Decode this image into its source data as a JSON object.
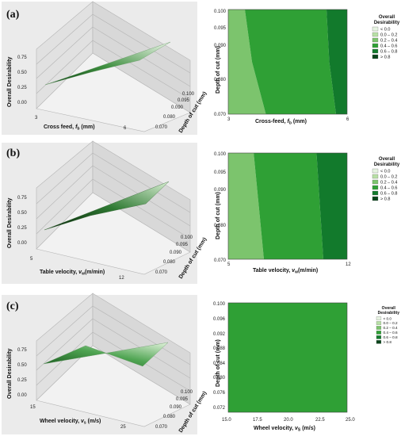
{
  "panels": [
    {
      "tag": "(a)",
      "surface": {
        "zlabel": "Overall Desirability",
        "xlabel_main": "Cross feed, ",
        "xlabel_sym": "f",
        "xlabel_sub": "b",
        "xlabel_unit": " (mm)",
        "ylabel": "Depth of cut (mm)",
        "zticks": [
          "0.00",
          "0.25",
          "0.50",
          "0.75"
        ],
        "xticks": [
          "3",
          "6"
        ],
        "yticks": [
          "0.070",
          "0.080",
          "0.090",
          "0.095",
          "0.100"
        ]
      },
      "contour": {
        "ylabel": "Depth of cut (mm)",
        "xlabel_main": "Cross-feed, ",
        "xlabel_sym": "f",
        "xlabel_sub": "b",
        "xlabel_unit": " (mm)",
        "xticks": [
          "3",
          "6"
        ],
        "yticks": [
          "0.100",
          "0.095",
          "0.090",
          "0.080",
          "0.070"
        ]
      }
    },
    {
      "tag": "(b)",
      "surface": {
        "zlabel": "Overall Desirability",
        "xlabel_main": "Table velocity, ",
        "xlabel_sym": "v",
        "xlabel_sub": "w",
        "xlabel_unit": "(m/min)",
        "ylabel": "Depth of cut (mm)",
        "zticks": [
          "0.00",
          "0.25",
          "0.50",
          "0.75"
        ],
        "xticks": [
          "5",
          "12"
        ],
        "yticks": [
          "0.070",
          "0.080",
          "0.090",
          "0.095",
          "0.100"
        ]
      },
      "contour": {
        "ylabel": "Depth of cut (mm)",
        "xlabel_main": "Table velocity, ",
        "xlabel_sym": "v",
        "xlabel_sub": "w",
        "xlabel_unit": "(m/min)",
        "xticks": [
          "5",
          "12"
        ],
        "yticks": [
          "0.100",
          "0.095",
          "0.090",
          "0.080",
          "0.070"
        ]
      }
    },
    {
      "tag": "(c)",
      "surface": {
        "zlabel": "Overall Desirability",
        "xlabel_main": "Wheel velocity, ",
        "xlabel_sym": "v",
        "xlabel_sub": "s",
        "xlabel_unit": "  (m/s)",
        "ylabel": "Depth of cut (mm)",
        "zticks": [
          "0.00",
          "0.25",
          "0.50",
          "0.75"
        ],
        "xticks": [
          "15",
          "25"
        ],
        "yticks": [
          "0.070",
          "0.080",
          "0.090",
          "0.095",
          "0.100"
        ]
      },
      "contour": {
        "ylabel": "Depth of cut (mm)",
        "xlabel_main": "Wheel velocity, ",
        "xlabel_sym": "v",
        "xlabel_sub": "S",
        "xlabel_unit": " (m/s)",
        "xticks": [
          "15.0",
          "17.5",
          "20.0",
          "22.5",
          "25.0"
        ],
        "yticks": [
          "0.100",
          "0.096",
          "0.092",
          "0.088",
          "0.084",
          "0.080",
          "0.076",
          "0.072"
        ]
      }
    }
  ],
  "legend": {
    "title_line1": "Overall",
    "title_line2": "Desirability",
    "items": [
      {
        "label": "< 0.0",
        "color": "#e6f3e1"
      },
      {
        "label": "0.0 – 0.2",
        "color": "#b8e0a6"
      },
      {
        "label": "0.2 – 0.4",
        "color": "#7cc46d"
      },
      {
        "label": "0.4 – 0.6",
        "color": "#2fa035"
      },
      {
        "label": "0.6 – 0.8",
        "color": "#127a2c"
      },
      {
        "label": "> 0.8",
        "color": "#08441a"
      }
    ]
  },
  "chart_data": [
    {
      "type": "surface",
      "panel": "(a)",
      "x_name": "Cross feed, fb (mm)",
      "x_range": [
        3,
        6
      ],
      "y_name": "Depth of cut (mm)",
      "y_range": [
        0.07,
        0.1
      ],
      "z_name": "Overall Desirability",
      "z_range": [
        0.0,
        0.75
      ],
      "corners": [
        {
          "x": 3,
          "y": 0.1,
          "z": 0.25
        },
        {
          "x": 6,
          "y": 0.1,
          "z": 0.55
        },
        {
          "x": 3,
          "y": 0.07,
          "z": 0.27
        },
        {
          "x": 6,
          "y": 0.07,
          "z": 0.7
        }
      ]
    },
    {
      "type": "contour",
      "panel": "(a)",
      "x_range": [
        3,
        6
      ],
      "y_range": [
        0.07,
        0.1
      ],
      "regions": [
        {
          "band": "0.2 – 0.4",
          "polygon": [
            [
              3,
              0.07
            ],
            [
              3,
              0.1
            ],
            [
              3.42,
              0.1
            ],
            [
              3.6,
              0.085
            ],
            [
              3.95,
              0.07
            ]
          ]
        },
        {
          "band": "0.4 – 0.6",
          "polygon": [
            [
              3.95,
              0.07
            ],
            [
              3.6,
              0.085
            ],
            [
              3.42,
              0.1
            ],
            [
              5.48,
              0.1
            ],
            [
              5.55,
              0.085
            ],
            [
              5.72,
              0.07
            ]
          ]
        },
        {
          "band": "0.6 – 0.8",
          "polygon": [
            [
              5.72,
              0.07
            ],
            [
              5.55,
              0.085
            ],
            [
              5.48,
              0.1
            ],
            [
              6,
              0.1
            ],
            [
              6,
              0.07
            ]
          ]
        }
      ]
    },
    {
      "type": "surface",
      "panel": "(b)",
      "x_name": "Table velocity, vw (m/min)",
      "x_range": [
        5,
        12
      ],
      "y_name": "Depth of cut (mm)",
      "y_range": [
        0.07,
        0.1
      ],
      "z_name": "Overall Desirability",
      "z_range": [
        0.0,
        0.75
      ],
      "corners": [
        {
          "x": 5,
          "y": 0.1,
          "z": 0.2
        },
        {
          "x": 12,
          "y": 0.1,
          "z": 0.72
        },
        {
          "x": 5,
          "y": 0.07,
          "z": 0.15
        },
        {
          "x": 12,
          "y": 0.07,
          "z": 0.75
        }
      ]
    },
    {
      "type": "contour",
      "panel": "(b)",
      "x_range": [
        5,
        12
      ],
      "y_range": [
        0.07,
        0.1
      ],
      "regions": [
        {
          "band": "0.2 – 0.4",
          "polygon": [
            [
              5,
              0.07
            ],
            [
              5,
              0.1
            ],
            [
              6.5,
              0.1
            ],
            [
              6.8,
              0.085
            ],
            [
              7.1,
              0.07
            ]
          ]
        },
        {
          "band": "0.4 – 0.6",
          "polygon": [
            [
              7.1,
              0.07
            ],
            [
              6.8,
              0.085
            ],
            [
              6.5,
              0.1
            ],
            [
              10.2,
              0.1
            ],
            [
              10.4,
              0.085
            ],
            [
              10.6,
              0.07
            ]
          ]
        },
        {
          "band": "0.6 – 0.8",
          "polygon": [
            [
              10.6,
              0.07
            ],
            [
              10.4,
              0.085
            ],
            [
              10.2,
              0.1
            ],
            [
              12,
              0.1
            ],
            [
              12,
              0.07
            ]
          ]
        }
      ]
    },
    {
      "type": "surface",
      "panel": "(c)",
      "x_name": "Wheel velocity, vs (m/s)",
      "x_range": [
        15,
        25
      ],
      "y_name": "Depth of cut (mm)",
      "y_range": [
        0.07,
        0.1
      ],
      "z_name": "Overall Desirability",
      "z_range": [
        0.0,
        0.75
      ],
      "corners": [
        {
          "x": 15,
          "y": 0.1,
          "z": 0.42
        },
        {
          "x": 25,
          "y": 0.1,
          "z": 0.5
        },
        {
          "x": 15,
          "y": 0.07,
          "z": 0.4
        },
        {
          "x": 25,
          "y": 0.07,
          "z": 0.5
        }
      ]
    },
    {
      "type": "contour",
      "panel": "(c)",
      "x_range": [
        15,
        25
      ],
      "y_range": [
        0.07,
        0.1
      ],
      "regions": [
        {
          "band": "0.4 – 0.6",
          "polygon": [
            [
              15,
              0.07
            ],
            [
              15,
              0.1
            ],
            [
              25,
              0.1
            ],
            [
              25,
              0.07
            ]
          ]
        }
      ]
    }
  ]
}
